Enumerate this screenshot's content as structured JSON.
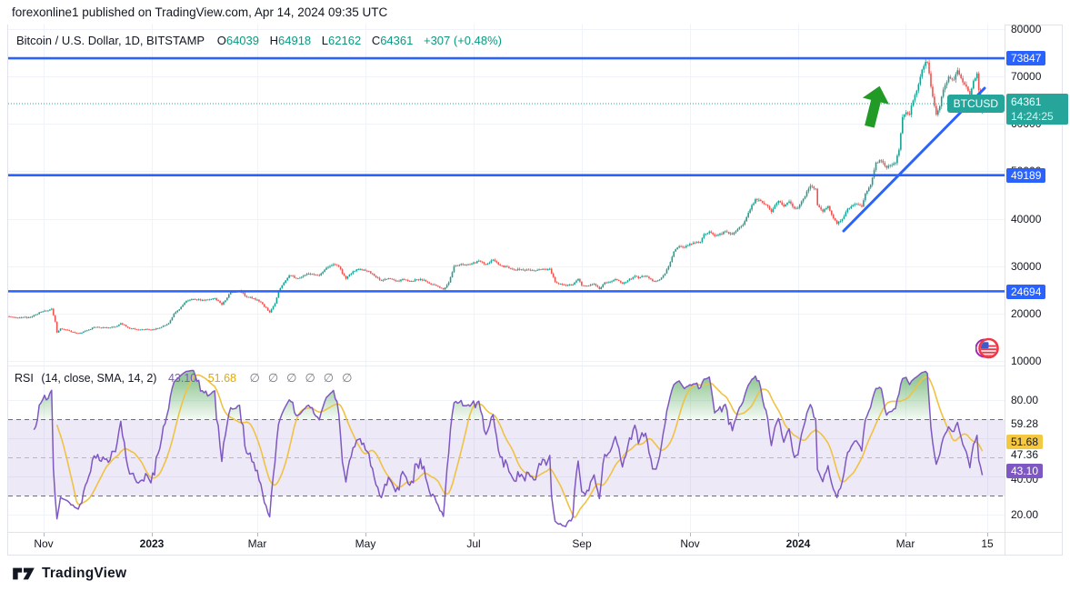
{
  "attribution": "forexonline1 published on TradingView.com, Apr 14, 2024 09:35 UTC",
  "header": {
    "symbol_title": "Bitcoin / U.S. Dollar, 1D, BITSTAMP",
    "o_label": "O",
    "o_value": "64039",
    "h_label": "H",
    "h_value": "64918",
    "l_label": "L",
    "l_value": "62162",
    "c_label": "C",
    "c_value": "64361",
    "change": "+307 (+0.48%)"
  },
  "colors": {
    "up": "#18A191",
    "down": "#EF5350",
    "line_blue": "#2962FF",
    "last_price_teal": "#26A69A",
    "rsi_purple": "#7E57C2",
    "rsi_ma_yellow": "#F0C243",
    "grid": "#F0F3FA",
    "band_fill": "rgba(126,87,194,0.13)",
    "overbought_green": "rgba(76,175,80,0.5)",
    "arrow_green": "#229A26",
    "badge_yellow": "#F5C842"
  },
  "price_axis": {
    "ticks": [
      "80000",
      "70000",
      "60000",
      "50000",
      "40000",
      "30000",
      "20000",
      "10000"
    ],
    "tick_prices": [
      80000,
      70000,
      60000,
      50000,
      40000,
      30000,
      20000,
      10000
    ],
    "line_badges": [
      {
        "text": "73847",
        "price": 73847
      },
      {
        "text": "49189",
        "price": 49189
      },
      {
        "text": "24694",
        "price": 24694
      }
    ],
    "last_price_badge": {
      "price_text": "64361",
      "countdown": "14:24:25"
    },
    "symbol_tag": "BTCUSD"
  },
  "rsi_pane": {
    "title": "RSI",
    "params": "(14, close, SMA, 14, 2)",
    "rsi_value": "43.10",
    "ma_value": "51.68",
    "hidden_placeholders": [
      "∅",
      "∅",
      "∅",
      "∅",
      "∅",
      "∅"
    ],
    "axis_labels": [
      "80.00",
      "59.28",
      "47.36",
      "20.00"
    ],
    "hidden_axis_label": "40.00",
    "rsi_badge": "43.10",
    "ma_badge": "51.68"
  },
  "time_axis": {
    "labels": [
      {
        "text": "Nov",
        "bold": false
      },
      {
        "text": "2023",
        "bold": true
      },
      {
        "text": "Mar",
        "bold": false
      },
      {
        "text": "May",
        "bold": false
      },
      {
        "text": "Jul",
        "bold": false
      },
      {
        "text": "Sep",
        "bold": false
      },
      {
        "text": "Nov",
        "bold": false
      },
      {
        "text": "2024",
        "bold": true
      },
      {
        "text": "Mar",
        "bold": false
      },
      {
        "text": "15",
        "bold": false
      }
    ]
  },
  "footer": {
    "logo_text": "TradingView"
  },
  "chart_data": [
    {
      "type": "candlestick",
      "title": "Bitcoin / U.S. Dollar, 1D, BITSTAMP",
      "x_axis_labels": [
        "Nov",
        "2023",
        "Mar",
        "May",
        "Jul",
        "Sep",
        "Nov",
        "2024",
        "Mar",
        "15"
      ],
      "y_range": [
        10000,
        80000
      ],
      "grid": true,
      "horizontal_lines": [
        73847,
        49189,
        24694
      ],
      "last_price": 64361,
      "peak_high": 73847,
      "last_candle": {
        "open": 64039,
        "high": 64918,
        "low": 62162,
        "close": 64361
      },
      "keyframes": [
        [
          0,
          19350
        ],
        [
          6,
          19150
        ],
        [
          12,
          19250
        ],
        [
          19,
          20450
        ],
        [
          24,
          21000
        ],
        [
          26,
          18300
        ],
        [
          27,
          16000
        ],
        [
          29,
          16850
        ],
        [
          33,
          16500
        ],
        [
          39,
          15800
        ],
        [
          44,
          16450
        ],
        [
          48,
          17150
        ],
        [
          54,
          17050
        ],
        [
          60,
          17200
        ],
        [
          63,
          17950
        ],
        [
          68,
          16850
        ],
        [
          75,
          16650
        ],
        [
          80,
          16550
        ],
        [
          85,
          17000
        ],
        [
          90,
          17950
        ],
        [
          93,
          19950
        ],
        [
          96,
          20900
        ],
        [
          100,
          22700
        ],
        [
          104,
          23050
        ],
        [
          109,
          22850
        ],
        [
          113,
          22950
        ],
        [
          116,
          23250
        ],
        [
          120,
          21850
        ],
        [
          125,
          24550
        ],
        [
          130,
          24800
        ],
        [
          134,
          23500
        ],
        [
          138,
          23200
        ],
        [
          142,
          22400
        ],
        [
          147,
          20250
        ],
        [
          150,
          22100
        ],
        [
          152,
          24750
        ],
        [
          155,
          26500
        ],
        [
          158,
          28050
        ],
        [
          162,
          27400
        ],
        [
          165,
          27750
        ],
        [
          168,
          28350
        ],
        [
          172,
          28200
        ],
        [
          175,
          28050
        ],
        [
          179,
          29650
        ],
        [
          183,
          30400
        ],
        [
          186,
          29900
        ],
        [
          190,
          27350
        ],
        [
          194,
          28900
        ],
        [
          197,
          29350
        ],
        [
          200,
          29250
        ],
        [
          203,
          28900
        ],
        [
          207,
          27650
        ],
        [
          210,
          26950
        ],
        [
          214,
          27450
        ],
        [
          218,
          26850
        ],
        [
          222,
          27250
        ],
        [
          226,
          26800
        ],
        [
          230,
          27200
        ],
        [
          234,
          27100
        ],
        [
          237,
          26350
        ],
        [
          241,
          25850
        ],
        [
          245,
          25100
        ],
        [
          248,
          26550
        ],
        [
          251,
          30000
        ],
        [
          255,
          30450
        ],
        [
          258,
          30300
        ],
        [
          261,
          30550
        ],
        [
          265,
          31150
        ],
        [
          269,
          30350
        ],
        [
          273,
          31350
        ],
        [
          277,
          30150
        ],
        [
          281,
          29850
        ],
        [
          285,
          29200
        ],
        [
          289,
          29300
        ],
        [
          293,
          29250
        ],
        [
          297,
          29050
        ],
        [
          301,
          29400
        ],
        [
          305,
          29450
        ],
        [
          308,
          26650
        ],
        [
          312,
          26100
        ],
        [
          315,
          26050
        ],
        [
          318,
          26100
        ],
        [
          321,
          27300
        ],
        [
          323,
          25950
        ],
        [
          327,
          25850
        ],
        [
          330,
          26250
        ],
        [
          333,
          25150
        ],
        [
          336,
          26550
        ],
        [
          339,
          26650
        ],
        [
          342,
          27250
        ],
        [
          346,
          26300
        ],
        [
          349,
          27000
        ],
        [
          353,
          27950
        ],
        [
          355,
          27450
        ],
        [
          359,
          27950
        ],
        [
          363,
          26850
        ],
        [
          367,
          27200
        ],
        [
          370,
          28450
        ],
        [
          372,
          29950
        ],
        [
          375,
          33100
        ],
        [
          378,
          34200
        ],
        [
          381,
          33950
        ],
        [
          384,
          34700
        ],
        [
          387,
          34950
        ],
        [
          390,
          35100
        ],
        [
          392,
          36750
        ],
        [
          395,
          37300
        ],
        [
          398,
          36350
        ],
        [
          400,
          36600
        ],
        [
          404,
          37350
        ],
        [
          408,
          36700
        ],
        [
          411,
          37850
        ],
        [
          414,
          38750
        ],
        [
          417,
          41250
        ],
        [
          421,
          44150
        ],
        [
          424,
          43750
        ],
        [
          427,
          42950
        ],
        [
          430,
          41450
        ],
        [
          434,
          43750
        ],
        [
          437,
          42600
        ],
        [
          440,
          43650
        ],
        [
          443,
          42150
        ],
        [
          445,
          42300
        ],
        [
          448,
          44200
        ],
        [
          452,
          46950
        ],
        [
          455,
          46300
        ],
        [
          456,
          42850
        ],
        [
          459,
          41500
        ],
        [
          462,
          42650
        ],
        [
          465,
          40100
        ],
        [
          467,
          38950
        ],
        [
          470,
          39950
        ],
        [
          473,
          42100
        ],
        [
          475,
          42600
        ],
        [
          478,
          43100
        ],
        [
          481,
          42550
        ],
        [
          483,
          45300
        ],
        [
          486,
          47150
        ],
        [
          489,
          51850
        ],
        [
          492,
          52250
        ],
        [
          495,
          50750
        ],
        [
          497,
          51300
        ],
        [
          500,
          51750
        ],
        [
          502,
          54550
        ],
        [
          504,
          61450
        ],
        [
          506,
          62450
        ],
        [
          508,
          61950
        ],
        [
          509,
          63850
        ],
        [
          511,
          66100
        ],
        [
          513,
          68350
        ],
        [
          515,
          71450
        ],
        [
          517,
          73100
        ],
        [
          518,
          72950
        ],
        [
          520,
          67850
        ],
        [
          523,
          61950
        ],
        [
          525,
          63750
        ],
        [
          527,
          67250
        ],
        [
          530,
          69950
        ],
        [
          533,
          69350
        ],
        [
          535,
          71300
        ],
        [
          537,
          69650
        ],
        [
          540,
          67850
        ],
        [
          542,
          65750
        ],
        [
          544,
          69100
        ],
        [
          546,
          70650
        ],
        [
          547,
          67150
        ],
        [
          549,
          64361
        ]
      ]
    },
    {
      "type": "line",
      "title": "RSI (14, close, SMA, 14, 2)",
      "y_range": [
        0,
        100
      ],
      "bands": [
        70,
        50,
        30
      ],
      "series": [
        {
          "name": "RSI",
          "length": 14,
          "source": "close",
          "last_value": 43.1
        },
        {
          "name": "RSI-based MA",
          "kind": "SMA",
          "length": 14,
          "last_value": 51.68
        }
      ]
    }
  ]
}
